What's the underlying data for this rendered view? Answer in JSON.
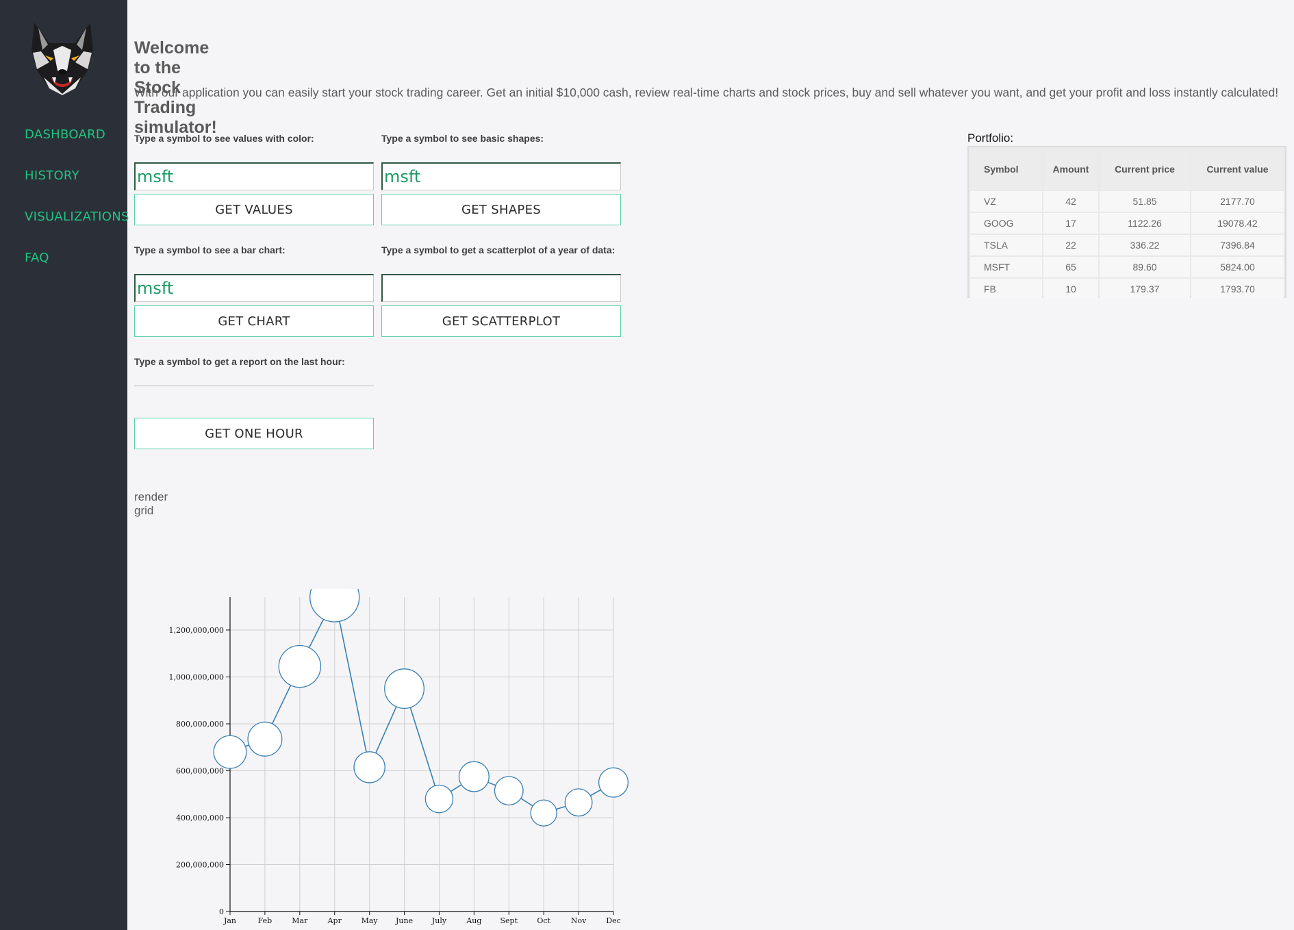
{
  "sidebar": {
    "logo_icon": "wolf-head-icon",
    "nav": [
      {
        "label": "DASHBOARD"
      },
      {
        "label": "HISTORY"
      },
      {
        "label": "VISUALIZATIONS"
      },
      {
        "label": "FAQ"
      }
    ],
    "accent_color": "#21c482",
    "background_color": "#2b3038"
  },
  "main": {
    "title": "Welcome to the Stock Trading simulator!",
    "intro": "With our application you can easily start your stock trading career. Get an initial $10,000 cash, review real-time charts and stock prices, buy and sell whatever you want, and get your profit and loss instantly calculated!",
    "forms": {
      "values": {
        "label": "Type a symbol to see values with color:",
        "value": "msft",
        "button": "GET VALUES"
      },
      "shapes": {
        "label": "Type a symbol to see basic shapes:",
        "value": "msft",
        "button": "GET SHAPES"
      },
      "bar": {
        "label": "Type a symbol to see a bar chart:",
        "value": "msft",
        "button": "GET CHART"
      },
      "scatter": {
        "label": "Type a symbol to get a scatterplot of a year of data:",
        "value": "",
        "button": "GET SCATTERPLOT"
      },
      "hour": {
        "label": "Type a symbol to get a report on the last hour:",
        "value": "",
        "button": "GET ONE HOUR"
      }
    },
    "render_grid": "render grid"
  },
  "portfolio": {
    "title": "Portfolio:",
    "headers": [
      "Symbol",
      "Amount",
      "Current price",
      "Current value"
    ],
    "rows": [
      [
        "VZ",
        "42",
        "51.85",
        "2177.70"
      ],
      [
        "GOOG",
        "17",
        "1122.26",
        "19078.42"
      ],
      [
        "TSLA",
        "22",
        "336.22",
        "7396.84"
      ],
      [
        "MSFT",
        "65",
        "89.60",
        "5824.00"
      ],
      [
        "FB",
        "10",
        "179.37",
        "1793.70"
      ]
    ]
  },
  "chart_data": {
    "type": "scatter",
    "categories": [
      "Jan",
      "Feb",
      "Mar",
      "Apr",
      "May",
      "June",
      "July",
      "Aug",
      "Sept",
      "Oct",
      "Nov",
      "Dec"
    ],
    "values": [
      680000000,
      735000000,
      1045000000,
      1340000000,
      615000000,
      950000000,
      480000000,
      575000000,
      515000000,
      420000000,
      465000000,
      550000000
    ],
    "y_ticks": [
      "0",
      "200,000,000",
      "400,000,000",
      "600,000,000",
      "800,000,000",
      "1,000,000,000",
      "1,200,000,000"
    ],
    "ylim": [
      0,
      1340000000
    ],
    "grid": true,
    "line_color": "#3a7fb2",
    "marker_fill": "#ffffff"
  }
}
